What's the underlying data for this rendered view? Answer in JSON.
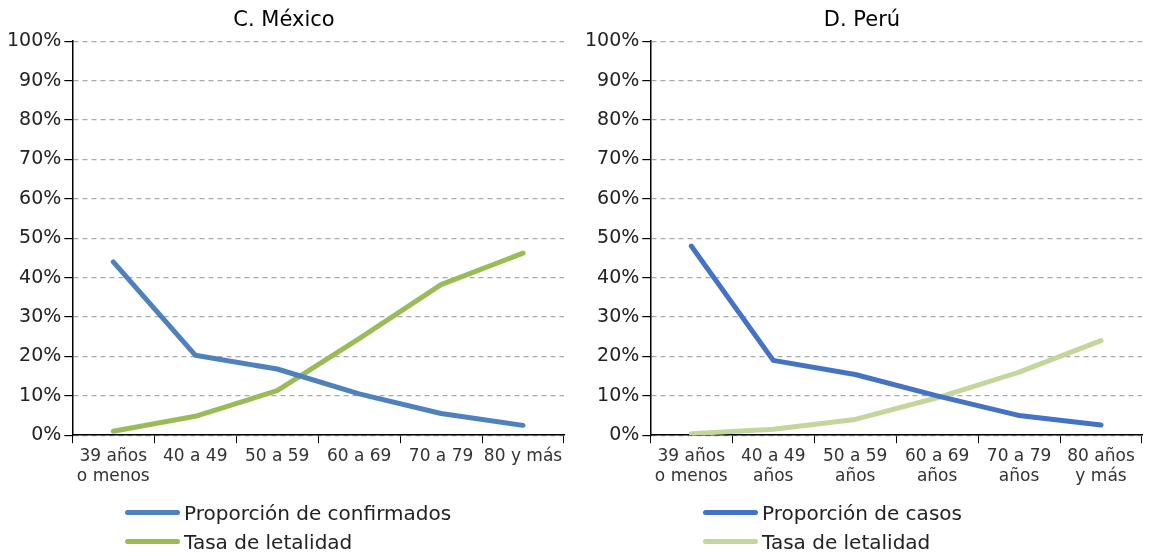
{
  "chart_data": [
    {
      "type": "line",
      "title": "C. México",
      "categories": [
        "39 años\no menos",
        "40 a 49",
        "50 a 59",
        "60 a 69",
        "70 a 79",
        "80 y más"
      ],
      "series": [
        {
          "name": "Proporción de confirmados",
          "color": "#4f81bd",
          "values": [
            44,
            20.3,
            16.8,
            10.5,
            5.5,
            2.5
          ]
        },
        {
          "name": "Tasa de letalidad",
          "color": "#9bbb59",
          "values": [
            1,
            4.8,
            11.3,
            24.5,
            38.2,
            46.2
          ]
        }
      ],
      "ylim": [
        0,
        100
      ],
      "yticks": [
        {
          "value": 0,
          "label": "0%"
        },
        {
          "value": 10,
          "label": "10%"
        },
        {
          "value": 20,
          "label": "20%"
        },
        {
          "value": 30,
          "label": "30%"
        },
        {
          "value": 40,
          "label": "40%"
        },
        {
          "value": 50,
          "label": "50%"
        },
        {
          "value": 60,
          "label": "60%"
        },
        {
          "value": 70,
          "label": "70%"
        },
        {
          "value": 80,
          "label": "80%"
        },
        {
          "value": 90,
          "label": "90%"
        },
        {
          "value": 100,
          "label": "100%"
        }
      ],
      "grid": "y",
      "legend": "bottom",
      "marker": "none",
      "line_style": "solid"
    },
    {
      "type": "line",
      "title": "D. Perú",
      "categories": [
        "39 años\no menos",
        "40 a 49\naños",
        "50 a 59\naños",
        "60 a 69\naños",
        "70 a 79\naños",
        "80 años\ny más"
      ],
      "series": [
        {
          "name": "Proporción de casos",
          "color": "#4472c4",
          "values": [
            48,
            19,
            15.4,
            10,
            5,
            2.6
          ]
        },
        {
          "name": "Tasa de letalidad",
          "color": "#c3d69b",
          "values": [
            0.4,
            1.5,
            4,
            9.5,
            16,
            24
          ]
        }
      ],
      "ylim": [
        0,
        100
      ],
      "yticks": [
        {
          "value": 0,
          "label": "0%"
        },
        {
          "value": 10,
          "label": "10%"
        },
        {
          "value": 20,
          "label": "20%"
        },
        {
          "value": 30,
          "label": "30%"
        },
        {
          "value": 40,
          "label": "40%"
        },
        {
          "value": 50,
          "label": "50%"
        },
        {
          "value": 60,
          "label": "60%"
        },
        {
          "value": 70,
          "label": "70%"
        },
        {
          "value": 80,
          "label": "80%"
        },
        {
          "value": 90,
          "label": "90%"
        },
        {
          "value": 100,
          "label": "100%"
        }
      ],
      "grid": "y",
      "legend": "bottom",
      "marker": "none",
      "line_style": "solid"
    }
  ]
}
